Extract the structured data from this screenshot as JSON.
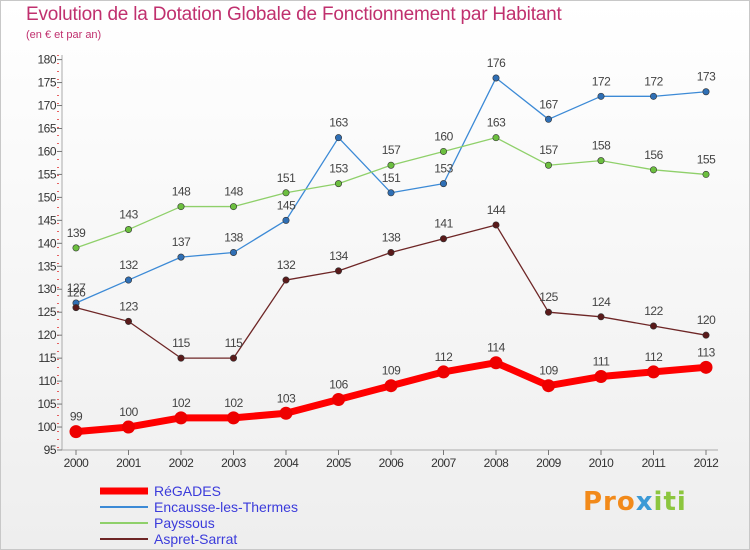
{
  "header": {
    "title": "Evolution de la Dotation Globale de Fonctionnement par Habitant",
    "subtitle": "(en € et par an)"
  },
  "chart_data": {
    "type": "line",
    "title": "Evolution de la Dotation Globale de Fonctionnement par Habitant",
    "subtitle": "(en € et par an)",
    "xlabel": "",
    "ylabel": "",
    "categories": [
      "2000",
      "2001",
      "2002",
      "2003",
      "2004",
      "2005",
      "2006",
      "2007",
      "2008",
      "2009",
      "2010",
      "2011",
      "2012"
    ],
    "y_ticks": [
      95,
      100,
      105,
      110,
      115,
      120,
      125,
      130,
      135,
      140,
      145,
      150,
      155,
      160,
      165,
      170,
      175,
      180
    ],
    "ylim": [
      95,
      181
    ],
    "grid": false,
    "series": [
      {
        "name": "Encausse-les-Thermes",
        "color": "#3c8ad6",
        "marker": "#2f6fb5",
        "values": [
          127,
          132,
          137,
          138,
          145,
          163,
          151,
          153,
          176,
          167,
          172,
          172,
          173
        ]
      },
      {
        "name": "Payssous",
        "color": "#8fd06a",
        "marker": "#6cbf3f",
        "values": [
          139,
          143,
          148,
          148,
          151,
          153,
          157,
          160,
          163,
          157,
          158,
          156,
          155
        ]
      },
      {
        "name": "Aspret-Sarrat",
        "color": "#6e2626",
        "marker": "#5a1a1a",
        "values": [
          126,
          123,
          115,
          115,
          132,
          134,
          138,
          141,
          144,
          125,
          124,
          122,
          120
        ]
      },
      {
        "name": "RéGADES",
        "color": "#ff0000",
        "marker": "#ee0000",
        "values": [
          99,
          100,
          102,
          102,
          103,
          106,
          109,
          112,
          114,
          109,
          111,
          112,
          113
        ]
      }
    ],
    "legend_order": [
      "RéGADES",
      "Encausse-les-Thermes",
      "Payssous",
      "Aspret-Sarrat"
    ]
  },
  "logo": {
    "p1": "Pro",
    "p2": "x",
    "p3": "iti"
  }
}
